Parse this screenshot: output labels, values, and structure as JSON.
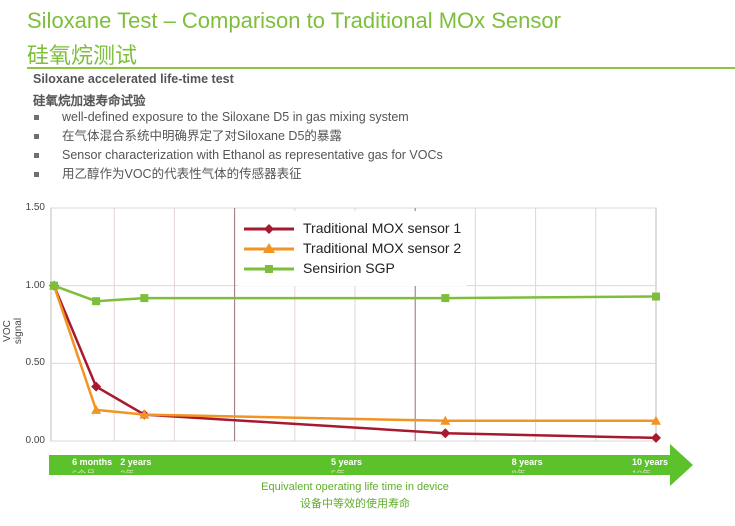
{
  "slide": {
    "title_en": "Siloxane Test – Comparison to Traditional MOx Sensor",
    "title_zh": "硅氧烷测试",
    "subtitle_en": "Siloxane accelerated life-time test",
    "subtitle_zh": "硅氧烷加速寿命试验",
    "bullets": [
      "well-defined exposure to the Siloxane D5 in gas mixing system",
      "在气体混合系统中明确界定了对Siloxane D5的暴露",
      "Sensor characterization with Ethanol as representative gas for VOCs",
      "用乙醇作为VOC的代表性气体的传感器表征"
    ]
  },
  "chart_data": {
    "type": "line",
    "ylabel": "VOC signal",
    "ylim": [
      0,
      1.5
    ],
    "yticks": [
      "0.00",
      "0.50",
      "1.00",
      "1.50"
    ],
    "xlim": [
      0,
      10
    ],
    "xlabel_en": "Equivalent operating life time in device",
    "xlabel_zh": "设备中等效的使用寿命",
    "xticks": [
      {
        "x": 0.7,
        "label": "6 months",
        "label_zh": "6个月"
      },
      {
        "x": 1.5,
        "label": "2 years",
        "label_zh": "2年"
      },
      {
        "x": 5,
        "label": "5 years",
        "label_zh": "5年"
      },
      {
        "x": 8,
        "label": "8 years",
        "label_zh": "8年"
      },
      {
        "x": 10,
        "label": "10 years",
        "label_zh": "10年"
      }
    ],
    "legend": "top-center",
    "series": [
      {
        "name": "Traditional MOX sensor 1",
        "color": "#a6192e",
        "marker": "diamond",
        "x": [
          0,
          0.7,
          1.5,
          6.5,
          10
        ],
        "y": [
          1.0,
          0.35,
          0.17,
          0.05,
          0.02
        ]
      },
      {
        "name": "Traditional MOX sensor 2",
        "color": "#f29423",
        "marker": "triangle",
        "x": [
          0,
          0.7,
          1.5,
          6.5,
          10
        ],
        "y": [
          1.0,
          0.2,
          0.17,
          0.13,
          0.13
        ]
      },
      {
        "name": "Sensirion SGP",
        "color": "#7dbf3b",
        "marker": "square",
        "x": [
          0,
          0.7,
          1.5,
          6.5,
          10
        ],
        "y": [
          1.0,
          0.9,
          0.92,
          0.92,
          0.93
        ]
      }
    ]
  }
}
